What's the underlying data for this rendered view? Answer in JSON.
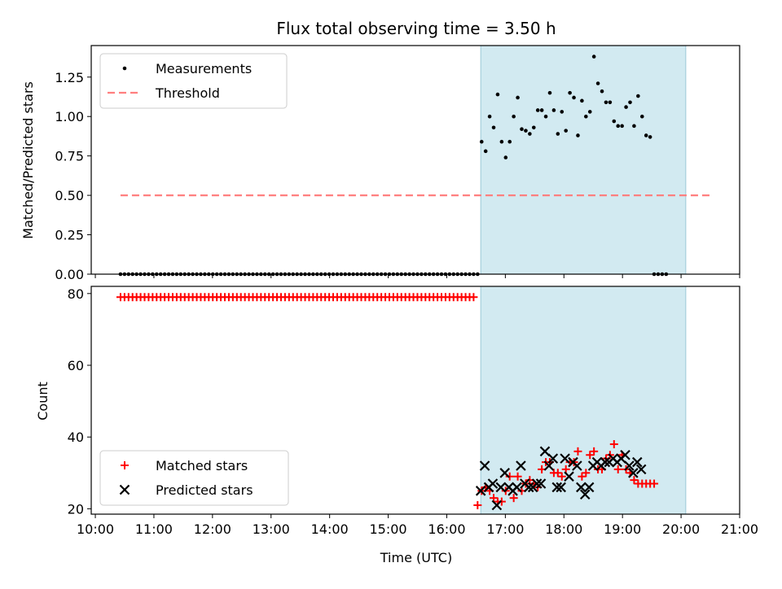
{
  "chart_data": [
    {
      "type": "scatter",
      "title": "Flux total observing time = 3.50 h",
      "ylabel": "Matched/Predicted stars",
      "xlabel": "",
      "ylim": [
        0,
        1.45
      ],
      "yticks": [
        "0.00",
        "0.25",
        "0.50",
        "0.75",
        "1.00",
        "1.25"
      ],
      "ytick_values": [
        0,
        0.25,
        0.5,
        0.75,
        1.0,
        1.25
      ],
      "xlim_hours": [
        9.93,
        21.0
      ],
      "shaded_span_hours": [
        16.58,
        20.08
      ],
      "shade_color": "#add8e6",
      "legend_position": "upper left",
      "series": [
        {
          "name": "Measurements",
          "marker": "dot",
          "color": "#000000",
          "x_start_hours": 10.43,
          "x_step_hours": 0.0685,
          "y": [
            0,
            0,
            0,
            0,
            0,
            0,
            0,
            0,
            0,
            0,
            0,
            0,
            0,
            0,
            0,
            0,
            0,
            0,
            0,
            0,
            0,
            0,
            0,
            0,
            0,
            0,
            0,
            0,
            0,
            0,
            0,
            0,
            0,
            0,
            0,
            0,
            0,
            0,
            0,
            0,
            0,
            0,
            0,
            0,
            0,
            0,
            0,
            0,
            0,
            0,
            0,
            0,
            0,
            0,
            0,
            0,
            0,
            0,
            0,
            0,
            0,
            0,
            0,
            0,
            0,
            0,
            0,
            0,
            0,
            0,
            0,
            0,
            0,
            0,
            0,
            0,
            0,
            0,
            0,
            0,
            0,
            0,
            0,
            0,
            0,
            0,
            0,
            0,
            0,
            0,
            0.84,
            0.78,
            1.0,
            0.93,
            1.14,
            0.84,
            0.74,
            0.84,
            1.0,
            1.12,
            0.92,
            0.91,
            0.89,
            0.93,
            1.04,
            1.04,
            1.0,
            1.15,
            1.04,
            0.89,
            1.03,
            0.91,
            1.15,
            1.12,
            0.88,
            1.1,
            1.0,
            1.03,
            1.38,
            1.21,
            1.16,
            1.09,
            1.09,
            0.97,
            0.94,
            0.94,
            1.06,
            1.09,
            0.94,
            1.13,
            1.0,
            0.88,
            0.87,
            0,
            0,
            0,
            0
          ]
        },
        {
          "name": "Threshold",
          "marker": "dashed-line",
          "color": "#ff7f7f",
          "x": [
            10.43,
            20.5
          ],
          "y": [
            0.5,
            0.5
          ]
        }
      ]
    },
    {
      "type": "scatter",
      "title": "",
      "ylabel": "Count",
      "xlabel": "Time (UTC)",
      "ylim": [
        18.5,
        82
      ],
      "yticks": [
        "20",
        "40",
        "60",
        "80"
      ],
      "ytick_values": [
        20,
        40,
        60,
        80
      ],
      "xlim_hours": [
        9.93,
        21.0
      ],
      "xticks": [
        "10:00",
        "11:00",
        "12:00",
        "13:00",
        "14:00",
        "15:00",
        "16:00",
        "17:00",
        "18:00",
        "19:00",
        "20:00",
        "21:00"
      ],
      "xtick_values_hours": [
        10,
        11,
        12,
        13,
        14,
        15,
        16,
        17,
        18,
        19,
        20,
        21
      ],
      "shaded_span_hours": [
        16.58,
        20.08
      ],
      "shade_color": "#add8e6",
      "legend_position": "lower left",
      "series": [
        {
          "name": "Matched stars",
          "marker": "plus",
          "color": "#ff0000",
          "x_start_hours": 10.43,
          "x_step_hours": 0.0685,
          "y": [
            79,
            79,
            79,
            79,
            79,
            79,
            79,
            79,
            79,
            79,
            79,
            79,
            79,
            79,
            79,
            79,
            79,
            79,
            79,
            79,
            79,
            79,
            79,
            79,
            79,
            79,
            79,
            79,
            79,
            79,
            79,
            79,
            79,
            79,
            79,
            79,
            79,
            79,
            79,
            79,
            79,
            79,
            79,
            79,
            79,
            79,
            79,
            79,
            79,
            79,
            79,
            79,
            79,
            79,
            79,
            79,
            79,
            79,
            79,
            79,
            79,
            79,
            79,
            79,
            79,
            79,
            79,
            79,
            79,
            79,
            79,
            79,
            79,
            79,
            79,
            79,
            79,
            79,
            79,
            79,
            79,
            79,
            79,
            79,
            79,
            79,
            79,
            79,
            79,
            21,
            25,
            26,
            25,
            23,
            22,
            22,
            25,
            29,
            23,
            29,
            25,
            27,
            28,
            27,
            26,
            31,
            33,
            33,
            30,
            30,
            29,
            31,
            33,
            33,
            36,
            29,
            30,
            35,
            36,
            31,
            31,
            34,
            35,
            38,
            31,
            35,
            31,
            30,
            28,
            27,
            27,
            27,
            27,
            27
          ]
        },
        {
          "name": "Predicted stars",
          "marker": "x",
          "color": "#000000",
          "x_start_hours": 16.58,
          "x_step_hours": 0.0685,
          "y": [
            25,
            32,
            26,
            27,
            21,
            26,
            30,
            26,
            25,
            26,
            32,
            27,
            26,
            26,
            27,
            27,
            36,
            32,
            34,
            26,
            26,
            34,
            29,
            33,
            32,
            26,
            24,
            26,
            32,
            33,
            32,
            33,
            33,
            34,
            33,
            34,
            35,
            32,
            30,
            33,
            31
          ]
        }
      ]
    }
  ]
}
